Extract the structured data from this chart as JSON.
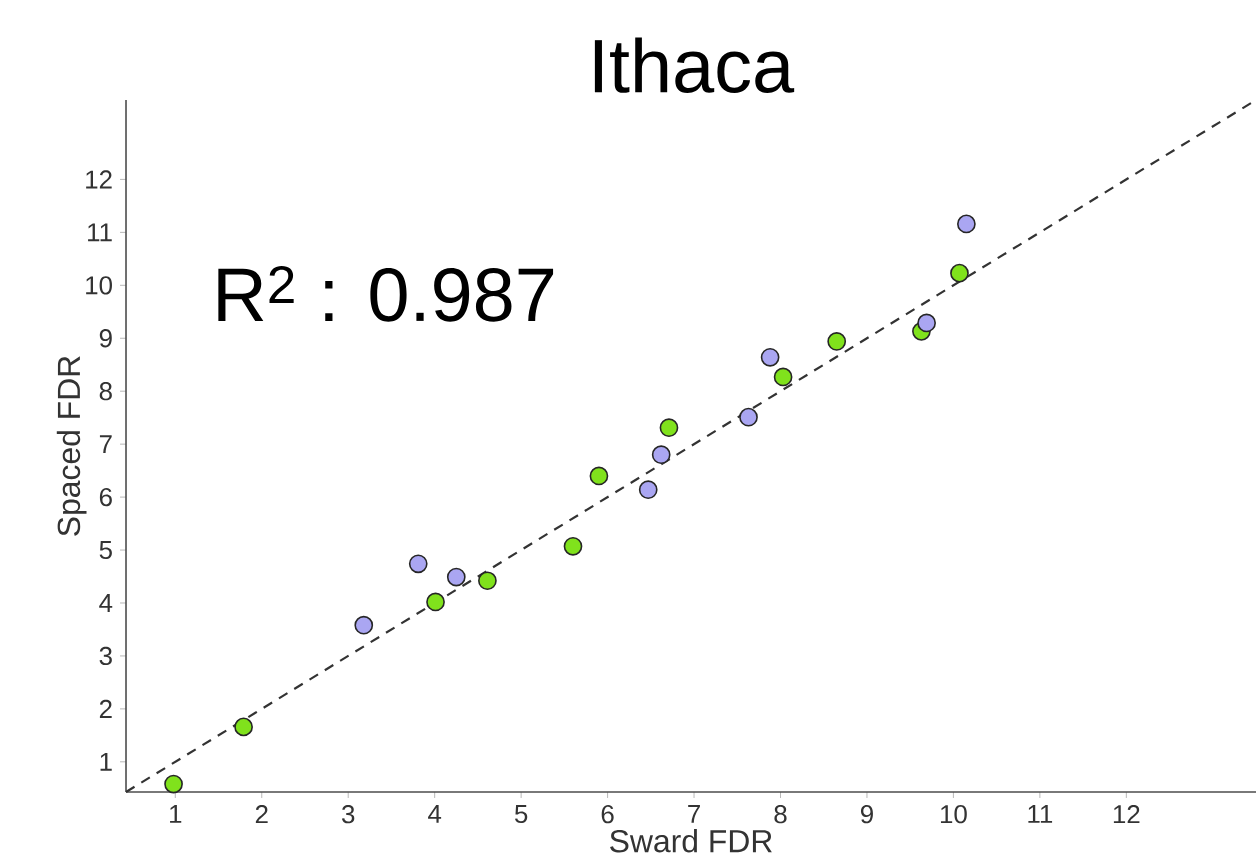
{
  "chart_data": {
    "type": "scatter",
    "title": "Ithaca",
    "xlabel": "Sward FDR",
    "ylabel": "Spaced FDR",
    "annotations": [
      "R$^{2}$ : 0.987"
    ],
    "xlim": [
      0.43,
      13.5
    ],
    "ylim": [
      0.43,
      13.5
    ],
    "xticks": [
      1,
      2,
      3,
      4,
      5,
      6,
      7,
      8,
      9,
      10,
      11,
      12
    ],
    "yticks": [
      1,
      2,
      3,
      4,
      5,
      6,
      7,
      8,
      9,
      10,
      11,
      12
    ],
    "grid": false,
    "series": [
      {
        "color": "#80e21c",
        "marker": "circle",
        "x": [
          0.98,
          1.79,
          4.01,
          4.61,
          5.6,
          5.9,
          6.71,
          8.03,
          8.65,
          9.63,
          10.07
        ],
        "values": [
          0.58,
          1.66,
          4.02,
          4.42,
          5.07,
          6.4,
          7.31,
          8.27,
          8.94,
          9.13,
          10.23
        ]
      },
      {
        "color": "#aaa6f2",
        "marker": "circle",
        "x": [
          3.18,
          3.81,
          4.25,
          6.47,
          6.62,
          7.63,
          7.88,
          9.69,
          10.15
        ],
        "values": [
          3.58,
          4.74,
          4.49,
          6.14,
          6.8,
          7.51,
          8.64,
          9.29,
          11.16
        ]
      },
      {
        "type": "line",
        "color": "#333333",
        "line_style": "dashed",
        "marker": "none",
        "x": [
          0.43,
          13.5
        ],
        "values": [
          0.43,
          13.5
        ]
      }
    ]
  }
}
